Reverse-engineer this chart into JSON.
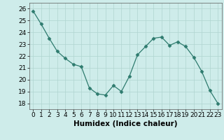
{
  "x": [
    0,
    1,
    2,
    3,
    4,
    5,
    6,
    7,
    8,
    9,
    10,
    11,
    12,
    13,
    14,
    15,
    16,
    17,
    18,
    19,
    20,
    21,
    22,
    23
  ],
  "y": [
    25.8,
    24.7,
    23.5,
    22.4,
    21.8,
    21.3,
    21.1,
    19.3,
    18.8,
    18.7,
    19.5,
    19.0,
    20.3,
    22.1,
    22.8,
    23.5,
    23.6,
    22.9,
    23.2,
    22.8,
    21.9,
    20.7,
    19.1,
    18.0
  ],
  "xlabel": "Humidex (Indice chaleur)",
  "ylim": [
    17.5,
    26.5
  ],
  "xlim": [
    -0.5,
    23.5
  ],
  "yticks": [
    18,
    19,
    20,
    21,
    22,
    23,
    24,
    25,
    26
  ],
  "xticks": [
    0,
    1,
    2,
    3,
    4,
    5,
    6,
    7,
    8,
    9,
    10,
    11,
    12,
    13,
    14,
    15,
    16,
    17,
    18,
    19,
    20,
    21,
    22,
    23
  ],
  "line_color": "#2e7b6e",
  "marker": "D",
  "marker_size": 2.5,
  "bg_color": "#ceecea",
  "grid_color": "#afd4d0",
  "tick_label_fontsize": 6.5,
  "xlabel_fontsize": 7.5
}
